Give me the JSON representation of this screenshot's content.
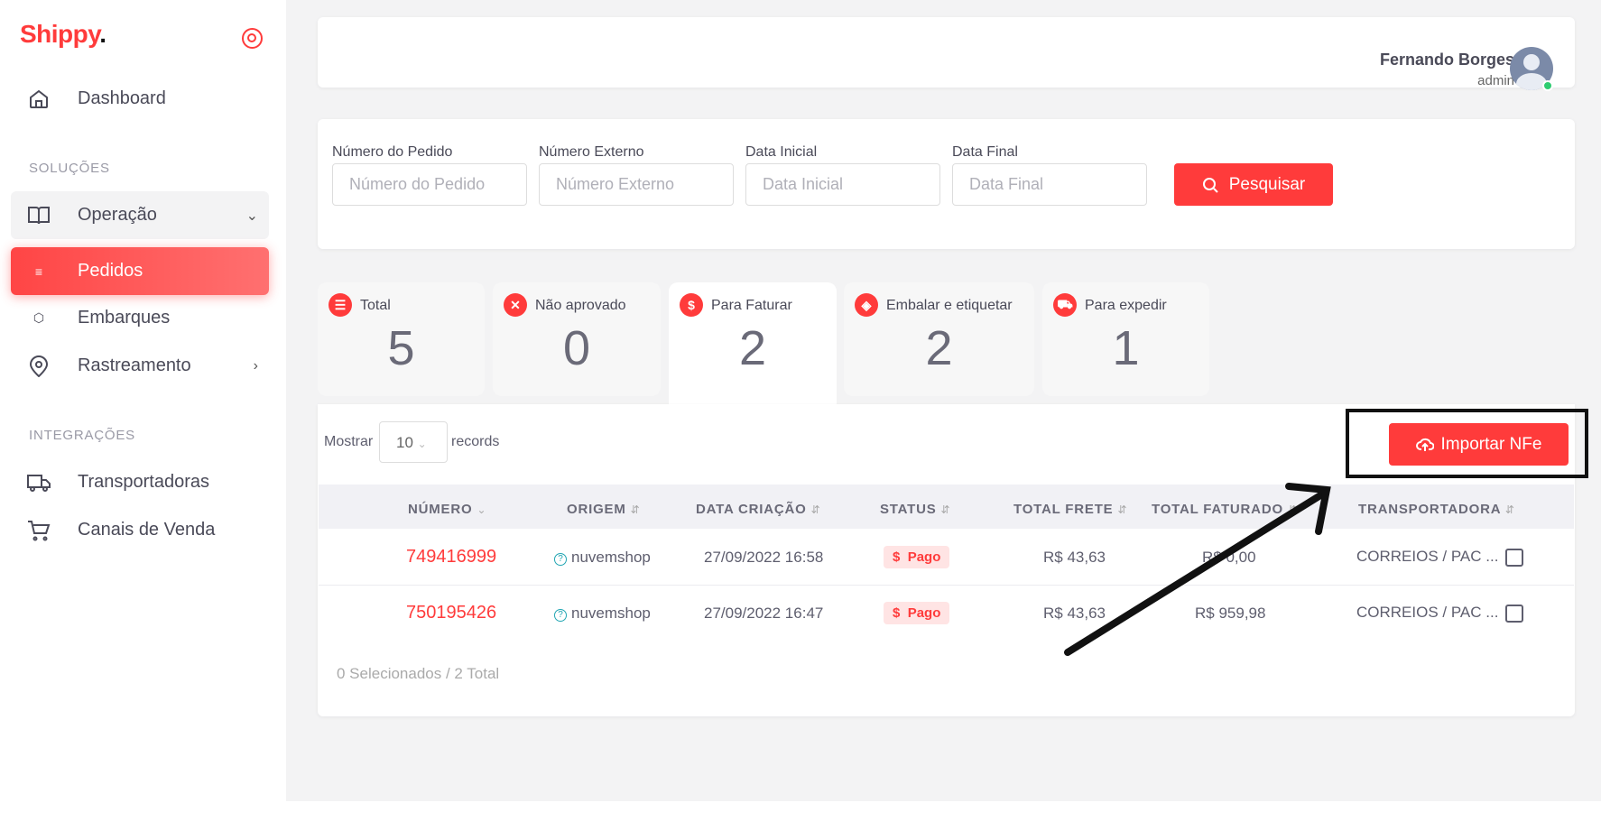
{
  "brand": {
    "name": "Shippy",
    "dot": ".",
    "accent": "#ff3b3b"
  },
  "sidebar": {
    "dashboard": "Dashboard",
    "section_solutions": "SOLUÇÕES",
    "operacao": "Operação",
    "pedidos": "Pedidos",
    "embarques": "Embarques",
    "rastreamento": "Rastreamento",
    "section_integrations": "INTEGRAÇÕES",
    "transportadoras": "Transportadoras",
    "canais": "Canais de Venda"
  },
  "user": {
    "name": "Fernando Borges",
    "role": "admin",
    "status": "online"
  },
  "filters": {
    "fields": [
      {
        "label": "Número do Pedido",
        "placeholder": "Número do Pedido"
      },
      {
        "label": "Número Externo",
        "placeholder": "Número Externo"
      },
      {
        "label": "Data Inicial",
        "placeholder": "Data Inicial"
      },
      {
        "label": "Data Final",
        "placeholder": "Data Final"
      }
    ],
    "search_label": "Pesquisar"
  },
  "stats": [
    {
      "label": "Total",
      "value": "5",
      "icon": "layers-icon"
    },
    {
      "label": "Não aprovado",
      "value": "0",
      "icon": "x-icon"
    },
    {
      "label": "Para Faturar",
      "value": "2",
      "icon": "dollar-icon",
      "selected": true
    },
    {
      "label": "Embalar e etiquetar",
      "value": "2",
      "icon": "tag-icon"
    },
    {
      "label": "Para expedir",
      "value": "1",
      "icon": "truck-icon"
    }
  ],
  "table": {
    "show_label": "Mostrar",
    "page_size": "10",
    "records_label": "records",
    "import_label": "Importar NFe",
    "columns": [
      "NÚMERO",
      "ORIGEM",
      "DATA CRIAÇÃO",
      "STATUS",
      "TOTAL FRETE",
      "TOTAL FATURADO",
      "TRANSPORTADORA"
    ],
    "rows": [
      {
        "numero": "749416999",
        "origem": "nuvemshop",
        "data": "27/09/2022 16:58",
        "status": "Pago",
        "frete": "R$ 43,63",
        "faturado": "R$ 0,00",
        "transportadora": "CORREIOS / PAC ..."
      },
      {
        "numero": "750195426",
        "origem": "nuvemshop",
        "data": "27/09/2022 16:47",
        "status": "Pago",
        "frete": "R$ 43,63",
        "faturado": "R$ 959,98",
        "transportadora": "CORREIOS / PAC ..."
      }
    ],
    "footer": "0 Selecionados / 2 Total"
  }
}
